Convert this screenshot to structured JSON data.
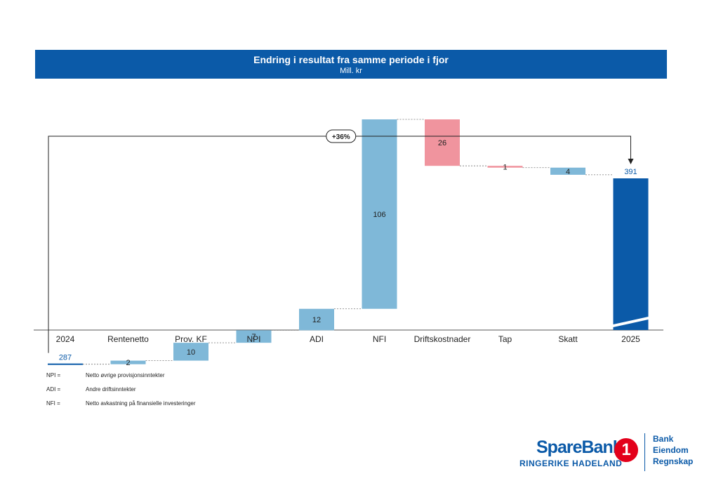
{
  "header": {
    "title": "Endring i resultat fra samme periode i fjor",
    "subtitle": "Mill. kr"
  },
  "chart_data": {
    "type": "bar",
    "subtype": "waterfall",
    "title": "Endring i resultat fra samme periode i fjor",
    "subtitle": "Mill. kr",
    "categories": [
      "2024",
      "Rentenetto",
      "Prov. KF",
      "NPI",
      "ADI",
      "NFI",
      "Driftskostnader",
      "Tap",
      "Skatt",
      "2025"
    ],
    "values": [
      287,
      2,
      10,
      7,
      12,
      106,
      -26,
      -1,
      -4,
      391
    ],
    "kinds": [
      "total",
      "change",
      "change",
      "change",
      "change",
      "change",
      "change",
      "change",
      "change",
      "total"
    ],
    "labels": [
      "287",
      "2",
      "10",
      "7",
      "12",
      "106",
      "26",
      "1",
      "4",
      "391"
    ],
    "change_annotation": "+36%",
    "colors": {
      "total": "#0b5aa8",
      "increase": "#7fb8d8",
      "decrease": "#f0949e",
      "tax": "#7fb8d8"
    },
    "ylim": [
      0,
      420
    ],
    "axis_break": true
  },
  "legend": [
    {
      "abbr": "NPI =",
      "desc": "Netto øvrige provisjonsinntekter"
    },
    {
      "abbr": "ADI =",
      "desc": "Andre driftsinntekter"
    },
    {
      "abbr": "NFI =",
      "desc": "Netto avkastning på finansielle investeringer"
    }
  ],
  "logo": {
    "brand": "SpareBank",
    "badge": "1",
    "sub": "RINGERIKE HADELAND",
    "services": [
      "Bank",
      "Eiendom",
      "Regnskap"
    ]
  }
}
